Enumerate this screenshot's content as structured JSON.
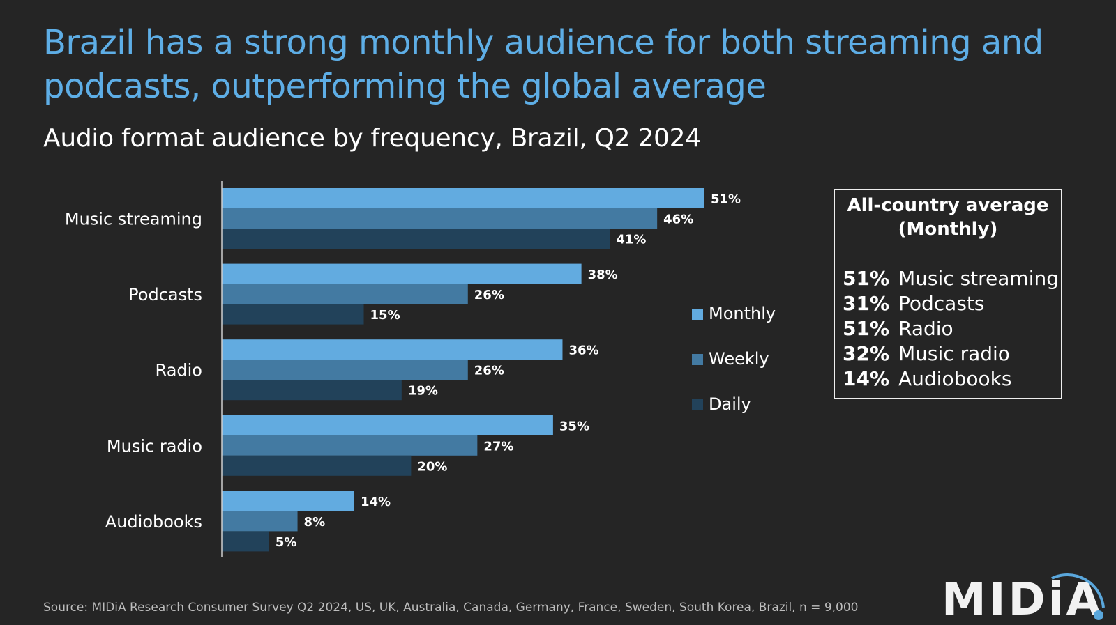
{
  "title": "Brazil has a strong monthly audience for both streaming and podcasts, outperforming the global average",
  "subtitle": "Audio format audience by frequency, Brazil, Q2 2024",
  "chart_data": {
    "type": "bar",
    "orientation": "horizontal",
    "categories": [
      "Music streaming",
      "Podcasts",
      "Radio",
      "Music radio",
      "Audiobooks"
    ],
    "series": [
      {
        "name": "Monthly",
        "color": "#62abe0",
        "values": [
          51,
          38,
          36,
          35,
          14
        ],
        "labels": [
          "51%",
          "38%",
          "36%",
          "35%",
          "14%"
        ]
      },
      {
        "name": "Weekly",
        "color": "#437aa2",
        "values": [
          46,
          26,
          26,
          27,
          8
        ],
        "labels": [
          "46%",
          "26%",
          "26%",
          "27%",
          "8%"
        ]
      },
      {
        "name": "Daily",
        "color": "#22425a",
        "values": [
          41,
          15,
          19,
          20,
          5
        ],
        "labels": [
          "41%",
          "15%",
          "19%",
          "20%",
          "5%"
        ]
      }
    ],
    "unit": "%",
    "xlim": [
      0,
      51
    ],
    "grid": false,
    "legend_placement": "right"
  },
  "legend": [
    "Monthly",
    "Weekly",
    "Daily"
  ],
  "average_box": {
    "heading": "All-country average",
    "subheading": "(Monthly)",
    "rows": [
      {
        "value": "51%",
        "label": "Music streaming"
      },
      {
        "value": "31%",
        "label": "Podcasts"
      },
      {
        "value": "51%",
        "label": "Radio"
      },
      {
        "value": "32%",
        "label": "Music radio"
      },
      {
        "value": "14%",
        "label": "Audiobooks"
      }
    ]
  },
  "source": "Source: MIDiA Research Consumer Survey Q2 2024, US, UK,  Australia, Canada, Germany, France, Sweden, South Korea, Brazil, n = 9,000",
  "logo": {
    "text": "MIDiA",
    "accent": "#5aa7dc"
  }
}
